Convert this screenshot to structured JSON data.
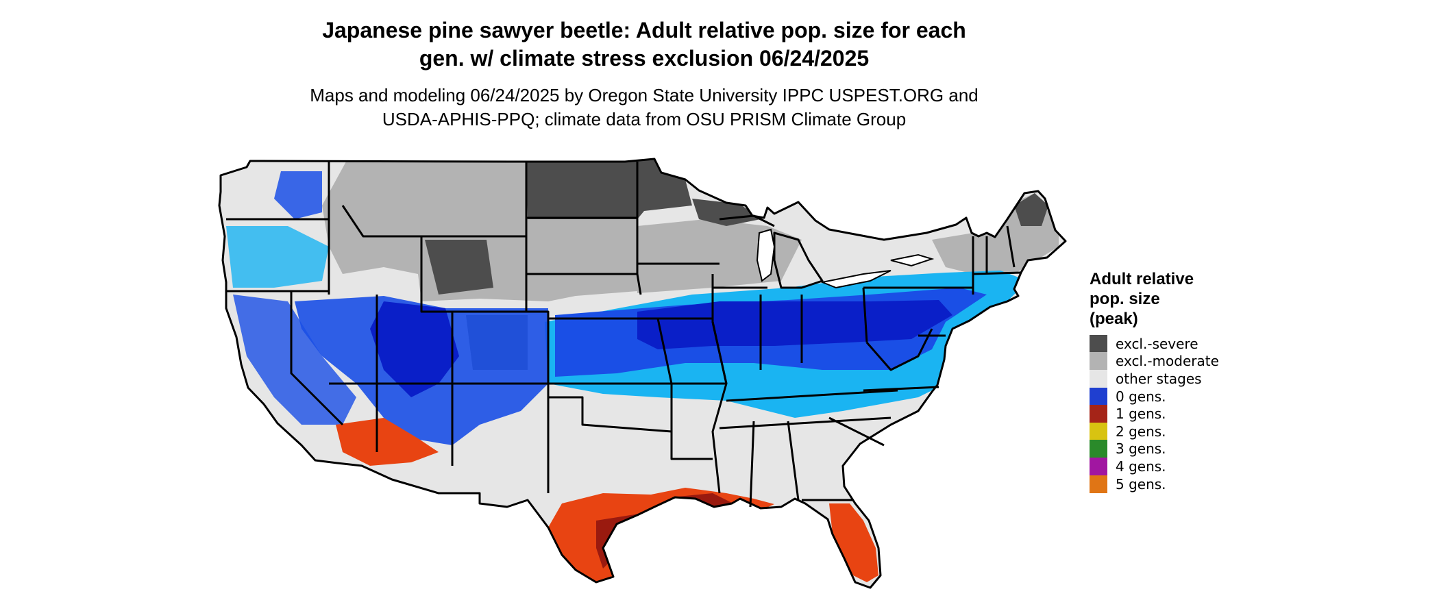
{
  "title_line1": "Japanese pine sawyer beetle: Adult relative pop. size for each",
  "title_line2": "gen. w/ climate stress exclusion 06/24/2025",
  "subtitle_line1": "Maps and modeling 06/24/2025 by Oregon State University IPPC USPEST.ORG and",
  "subtitle_line2": "USDA-APHIS-PPQ; climate data from OSU PRISM Climate Group",
  "legend": {
    "title_line1": "Adult relative",
    "title_line2": "pop. size",
    "title_line3": "(peak)",
    "items": [
      {
        "label": "excl.-severe",
        "color": "#4d4d4d"
      },
      {
        "label": "excl.-moderate",
        "color": "#b3b3b3"
      },
      {
        "label": "other stages",
        "color": "#e6e6e6"
      },
      {
        "label": "0 gens.",
        "color": "#1f3fd0"
      },
      {
        "label": "1 gens.",
        "color": "#a52418"
      },
      {
        "label": "2 gens.",
        "color": "#d8c311"
      },
      {
        "label": "3 gens.",
        "color": "#2a8a2a"
      },
      {
        "label": "4 gens.",
        "color": "#a116a1"
      },
      {
        "label": "5 gens.",
        "color": "#e07515"
      }
    ]
  },
  "colors": {
    "severe": "#4d4d4d",
    "moderate": "#b3b3b3",
    "other": "#e6e6e6",
    "gen0_dark": "#0a1fc8",
    "gen0_mid": "#1a4fe6",
    "gen0_light": "#1ab4f2",
    "gen1_dark": "#9a1a0f",
    "gen1_orange": "#e84412",
    "border": "#000000"
  }
}
